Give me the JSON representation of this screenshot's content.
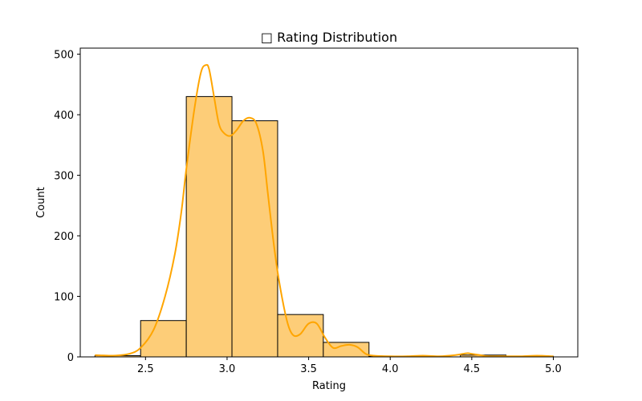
{
  "chart_data": {
    "type": "bar",
    "title": "□ Rating Distribution",
    "xlabel": "Rating",
    "ylabel": "Count",
    "xlim": [
      2.1,
      5.15
    ],
    "ylim": [
      0,
      510
    ],
    "x_ticks": [
      2.5,
      3.0,
      3.5,
      4.0,
      4.5,
      5.0
    ],
    "x_tick_labels": [
      "2.5",
      "3.0",
      "3.5",
      "4.0",
      "4.5",
      "5.0"
    ],
    "y_ticks": [
      0,
      100,
      200,
      300,
      400,
      500
    ],
    "y_tick_labels": [
      "0",
      "100",
      "200",
      "300",
      "400",
      "500"
    ],
    "grid": false,
    "bins": [
      {
        "x0": 2.19,
        "x1": 2.47,
        "count": 2
      },
      {
        "x0": 2.47,
        "x1": 2.75,
        "count": 60
      },
      {
        "x0": 2.75,
        "x1": 3.03,
        "count": 430
      },
      {
        "x0": 3.03,
        "x1": 3.31,
        "count": 390
      },
      {
        "x0": 3.31,
        "x1": 3.59,
        "count": 70
      },
      {
        "x0": 3.59,
        "x1": 3.87,
        "count": 24
      },
      {
        "x0": 3.87,
        "x1": 4.15,
        "count": 1
      },
      {
        "x0": 4.15,
        "x1": 4.43,
        "count": 0
      },
      {
        "x0": 4.43,
        "x1": 4.71,
        "count": 3
      },
      {
        "x0": 4.71,
        "x1": 5.0,
        "count": 1
      }
    ],
    "kde": {
      "x": [
        2.19,
        2.3,
        2.4,
        2.47,
        2.55,
        2.62,
        2.68,
        2.72,
        2.75,
        2.8,
        2.84,
        2.87,
        2.89,
        2.92,
        2.95,
        2.98,
        3.02,
        3.06,
        3.1,
        3.14,
        3.18,
        3.22,
        3.25,
        3.28,
        3.31,
        3.35,
        3.38,
        3.41,
        3.45,
        3.5,
        3.55,
        3.6,
        3.65,
        3.7,
        3.75,
        3.8,
        3.85,
        3.9,
        4.0,
        4.1,
        4.2,
        4.3,
        4.4,
        4.47,
        4.5,
        4.55,
        4.6,
        4.7,
        4.8,
        4.9,
        5.0
      ],
      "y": [
        3,
        2,
        5,
        15,
        45,
        100,
        170,
        240,
        310,
        410,
        470,
        482,
        475,
        430,
        385,
        370,
        365,
        375,
        390,
        395,
        385,
        340,
        270,
        200,
        140,
        80,
        48,
        35,
        38,
        55,
        55,
        32,
        15,
        18,
        20,
        16,
        5,
        2,
        1,
        1,
        2,
        1,
        3,
        6,
        5,
        3,
        1,
        1,
        1,
        2,
        1
      ]
    },
    "colors": {
      "bar_fill": "#fdcd78",
      "bar_edge": "#000000",
      "kde_line": "#ffa500"
    }
  }
}
